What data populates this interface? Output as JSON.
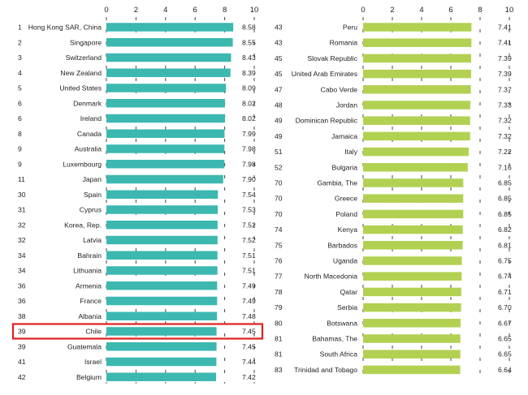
{
  "chart_data": [
    {
      "type": "bar",
      "orientation": "horizontal",
      "xlim": [
        0,
        10
      ],
      "ticks": [
        "0",
        "2",
        "4",
        "6",
        "8",
        "10"
      ],
      "bar_color": "#3cb8b0",
      "highlight_color": "#e0201e",
      "rows": [
        {
          "rank": "1",
          "country": "Hong Kong SAR, China",
          "value": 8.58,
          "label": "8.58"
        },
        {
          "rank": "2",
          "country": "Singapore",
          "value": 8.55,
          "label": "8.55"
        },
        {
          "rank": "3",
          "country": "Switzerland",
          "value": 8.43,
          "label": "8.43"
        },
        {
          "rank": "4",
          "country": "New Zealand",
          "value": 8.39,
          "label": "8.39"
        },
        {
          "rank": "5",
          "country": "United States",
          "value": 8.09,
          "label": "8.09"
        },
        {
          "rank": "6",
          "country": "Denmark",
          "value": 8.02,
          "label": "8.02"
        },
        {
          "rank": "6",
          "country": "Ireland",
          "value": 8.02,
          "label": "8.02"
        },
        {
          "rank": "8",
          "country": "Canada",
          "value": 7.99,
          "label": "7.99"
        },
        {
          "rank": "9",
          "country": "Australia",
          "value": 7.98,
          "label": "7.98"
        },
        {
          "rank": "9",
          "country": "Luxembourg",
          "value": 7.98,
          "label": "7.98"
        },
        {
          "rank": "11",
          "country": "Japan",
          "value": 7.9,
          "label": "7.90"
        },
        {
          "rank": "30",
          "country": "Spain",
          "value": 7.54,
          "label": "7.54"
        },
        {
          "rank": "31",
          "country": "Cyprus",
          "value": 7.53,
          "label": "7.53"
        },
        {
          "rank": "32",
          "country": "Korea, Rep.",
          "value": 7.52,
          "label": "7.52"
        },
        {
          "rank": "32",
          "country": "Latvia",
          "value": 7.52,
          "label": "7.52"
        },
        {
          "rank": "34",
          "country": "Bahrain",
          "value": 7.51,
          "label": "7.51"
        },
        {
          "rank": "34",
          "country": "Lithuania",
          "value": 7.51,
          "label": "7.51"
        },
        {
          "rank": "36",
          "country": "Armenia",
          "value": 7.49,
          "label": "7.49"
        },
        {
          "rank": "36",
          "country": "France",
          "value": 7.49,
          "label": "7.49"
        },
        {
          "rank": "38",
          "country": "Albania",
          "value": 7.48,
          "label": "7.48"
        },
        {
          "rank": "39",
          "country": "Chile",
          "value": 7.45,
          "label": "7.45",
          "highlight": true
        },
        {
          "rank": "39",
          "country": "Guatemala",
          "value": 7.45,
          "label": "7.45"
        },
        {
          "rank": "41",
          "country": "Israel",
          "value": 7.44,
          "label": "7.44"
        },
        {
          "rank": "42",
          "country": "Belgium",
          "value": 7.42,
          "label": "7.42"
        }
      ]
    },
    {
      "type": "bar",
      "orientation": "horizontal",
      "xlim": [
        0,
        10
      ],
      "ticks": [
        "0",
        "2",
        "4",
        "6",
        "8",
        "10"
      ],
      "bar_color": "#b2d152",
      "rows": [
        {
          "rank": "43",
          "country": "Peru",
          "value": 7.41,
          "label": "7.41"
        },
        {
          "rank": "43",
          "country": "Romania",
          "value": 7.41,
          "label": "7.41"
        },
        {
          "rank": "45",
          "country": "Slovak Republic",
          "value": 7.39,
          "label": "7.39"
        },
        {
          "rank": "45",
          "country": "United Arab Emirates",
          "value": 7.39,
          "label": "7.39"
        },
        {
          "rank": "47",
          "country": "Cabo Verde",
          "value": 7.37,
          "label": "7.37"
        },
        {
          "rank": "48",
          "country": "Jordan",
          "value": 7.33,
          "label": "7.33"
        },
        {
          "rank": "49",
          "country": "Dominican Republic",
          "value": 7.32,
          "label": "7.32"
        },
        {
          "rank": "49",
          "country": "Jamaica",
          "value": 7.32,
          "label": "7.32"
        },
        {
          "rank": "51",
          "country": "Italy",
          "value": 7.22,
          "label": "7.22"
        },
        {
          "rank": "52",
          "country": "Bulgaria",
          "value": 7.16,
          "label": "7.16"
        },
        {
          "rank": "70",
          "country": "Gambia, The",
          "value": 6.85,
          "label": "6.85"
        },
        {
          "rank": "70",
          "country": "Greece",
          "value": 6.85,
          "label": "6.85"
        },
        {
          "rank": "70",
          "country": "Poland",
          "value": 6.85,
          "label": "6.85"
        },
        {
          "rank": "74",
          "country": "Kenya",
          "value": 6.82,
          "label": "6.82"
        },
        {
          "rank": "75",
          "country": "Barbados",
          "value": 6.81,
          "label": "6.81"
        },
        {
          "rank": "76",
          "country": "Uganda",
          "value": 6.75,
          "label": "6.75"
        },
        {
          "rank": "77",
          "country": "North Macedonia",
          "value": 6.74,
          "label": "6.74"
        },
        {
          "rank": "78",
          "country": "Qatar",
          "value": 6.71,
          "label": "6.71"
        },
        {
          "rank": "79",
          "country": "Serbia",
          "value": 6.7,
          "label": "6.70"
        },
        {
          "rank": "80",
          "country": "Botswana",
          "value": 6.67,
          "label": "6.67"
        },
        {
          "rank": "81",
          "country": "Bahamas, The",
          "value": 6.65,
          "label": "6.65"
        },
        {
          "rank": "81",
          "country": "South Africa",
          "value": 6.65,
          "label": "6.65"
        },
        {
          "rank": "83",
          "country": "Trinidad and Tobago",
          "value": 6.64,
          "label": "6.64"
        }
      ]
    }
  ]
}
